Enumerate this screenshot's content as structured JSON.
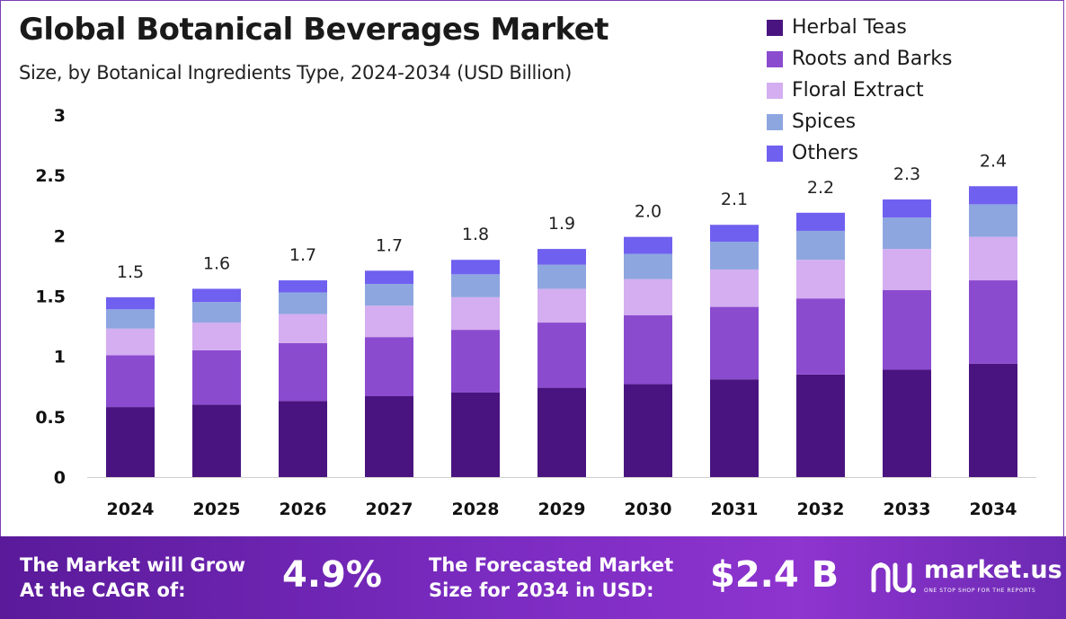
{
  "chart_data": {
    "type": "bar",
    "stacked": true,
    "title": "Global Botanical Beverages Market",
    "subtitle": "Size, by Botanical Ingredients Type, 2024-2034 (USD Billion)",
    "categories": [
      "2024",
      "2025",
      "2026",
      "2027",
      "2028",
      "2029",
      "2030",
      "2031",
      "2032",
      "2033",
      "2034"
    ],
    "series": [
      {
        "name": "Herbal Teas",
        "color": "#4a1480",
        "values": [
          0.58,
          0.6,
          0.63,
          0.67,
          0.7,
          0.74,
          0.77,
          0.81,
          0.85,
          0.89,
          0.94
        ]
      },
      {
        "name": "Roots and Barks",
        "color": "#8b4bcf",
        "values": [
          0.43,
          0.45,
          0.48,
          0.49,
          0.52,
          0.54,
          0.57,
          0.6,
          0.63,
          0.66,
          0.69
        ]
      },
      {
        "name": "Floral Extract",
        "color": "#d4aef0",
        "values": [
          0.22,
          0.23,
          0.24,
          0.26,
          0.27,
          0.28,
          0.3,
          0.31,
          0.32,
          0.34,
          0.36
        ]
      },
      {
        "name": "Spices",
        "color": "#8ea6e0",
        "values": [
          0.16,
          0.17,
          0.18,
          0.18,
          0.19,
          0.2,
          0.21,
          0.23,
          0.24,
          0.26,
          0.27
        ]
      },
      {
        "name": "Others",
        "color": "#7060f0",
        "values": [
          0.1,
          0.11,
          0.1,
          0.11,
          0.12,
          0.13,
          0.14,
          0.14,
          0.15,
          0.15,
          0.15
        ]
      }
    ],
    "totals": [
      "1.5",
      "1.6",
      "1.7",
      "1.7",
      "1.8",
      "1.9",
      "2.0",
      "2.1",
      "2.2",
      "2.3",
      "2.4"
    ],
    "yticks": [
      "0",
      "0.5",
      "1",
      "1.5",
      "2",
      "2.5",
      "3"
    ],
    "ylim": [
      0,
      3
    ],
    "xlabel": "",
    "ylabel": "",
    "grid": false,
    "legend_position": "top-right"
  },
  "footer": {
    "cagr_label_line1": "The Market will Grow",
    "cagr_label_line2": "At the CAGR of:",
    "cagr_value": "4.9%",
    "forecast_label_line1": "The Forecasted Market",
    "forecast_label_line2": "Size for 2034 in USD:",
    "forecast_value": "$2.4 B",
    "brand_name": "market.us",
    "brand_tagline": "ONE STOP SHOP FOR THE REPORTS"
  }
}
